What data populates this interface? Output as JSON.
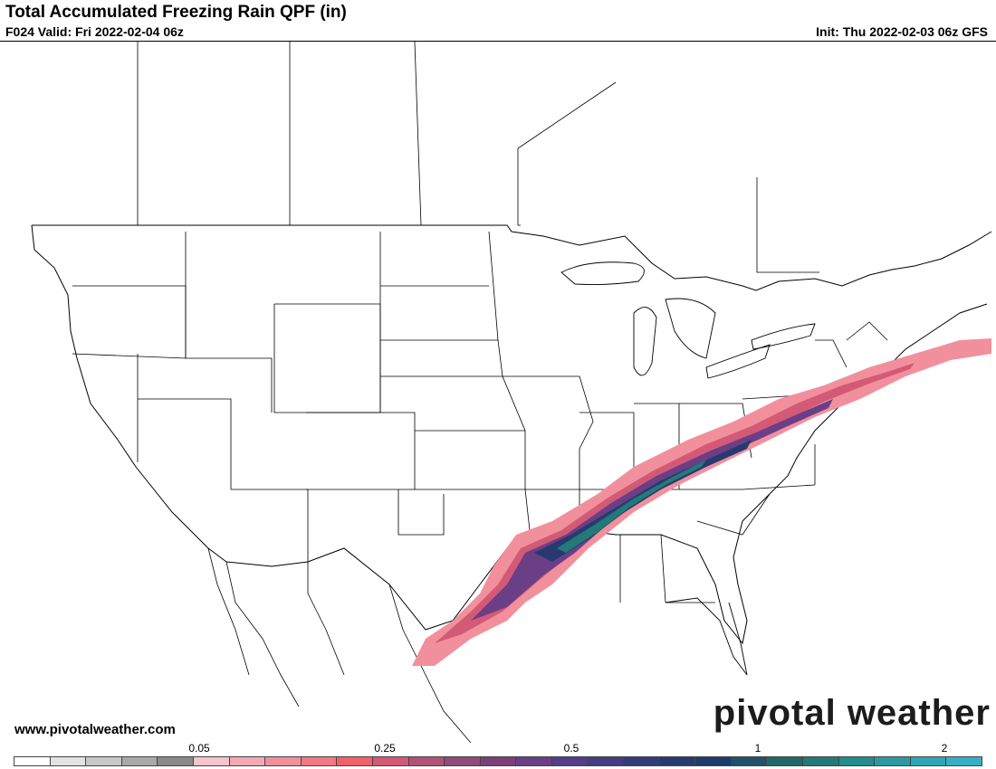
{
  "header": {
    "title": "Total Accumulated Freezing Rain QPF (in)",
    "valid": "F024 Valid: Fri 2022-02-04 06z",
    "init": "Init: Thu 2022-02-03 06z GFS"
  },
  "footer": {
    "url": "www.pivotalweather.com",
    "brand": "pivotal weather"
  },
  "colorbar": {
    "labels": [
      "0.05",
      "0.25",
      "0.5",
      "1",
      "2"
    ],
    "colors": [
      "#ffffff",
      "#e3e3e3",
      "#c8c8c8",
      "#a9a9a9",
      "#8a8a8a",
      "#f5c4cd",
      "#f3a9b5",
      "#f1909c",
      "#f27a84",
      "#f2606b",
      "#d35a76",
      "#b25277",
      "#934b77",
      "#7d3f7a",
      "#6a3f86",
      "#563d8c",
      "#453c83",
      "#343b78",
      "#273a70",
      "#1e3c6d",
      "#1f5369",
      "#216866",
      "#237a78",
      "#258c8e",
      "#2a9aa2",
      "#2fa6b8",
      "#36b0c8"
    ]
  },
  "map": {
    "region": "CONUS",
    "style": {
      "land": "#ffffff",
      "boundaries": "#000000",
      "precip_colors": [
        "#f1909c",
        "#d35a76",
        "#6a3f86",
        "#273a70",
        "#237a78"
      ]
    }
  }
}
